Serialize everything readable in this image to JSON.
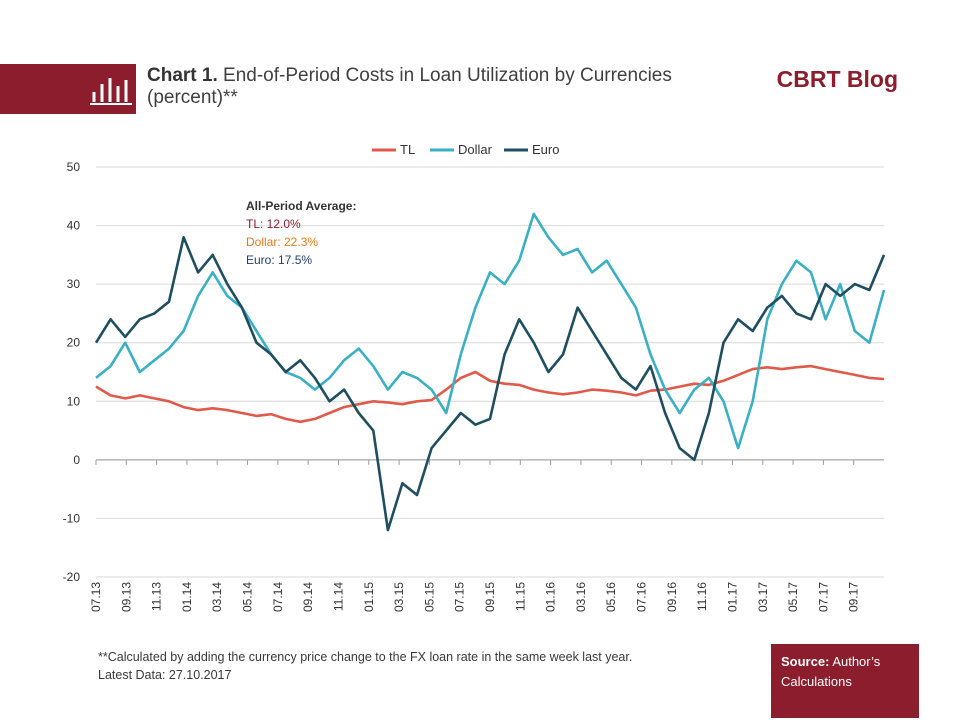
{
  "header": {
    "chart_label": "Chart 1.",
    "title": "End-of-Period Costs in Loan Utilization by Currencies (percent)**",
    "blog_name": "CBRT Blog"
  },
  "footer": {
    "note": "**Calculated by adding the currency price change to the FX loan rate in the same week last year.",
    "latest_data": "Latest Data: 27.10.2017",
    "source_label": "Source:",
    "source_text": "Author’s Calculations"
  },
  "colors": {
    "brand": "#8b1d2c",
    "tl": "#e05a4a",
    "dollar": "#3ab0c2",
    "euro": "#1f4e5f"
  },
  "chart_data": {
    "type": "line",
    "title": "End-of-Period Costs in Loan Utilization by Currencies (percent)**",
    "ylim": [
      -20,
      50
    ],
    "yticks": [
      50,
      40,
      30,
      20,
      10,
      0,
      -10,
      -20
    ],
    "xlim": [
      0,
      54
    ],
    "x_tick_labels": [
      "07.13",
      "09.13",
      "11.13",
      "01.14",
      "03.14",
      "05.14",
      "07.14",
      "09.14",
      "11.14",
      "01.15",
      "03.15",
      "05.15",
      "07.15",
      "09.15",
      "11.15",
      "01.16",
      "03.16",
      "05.16",
      "07.16",
      "09.16",
      "11.16",
      "01.17",
      "03.17",
      "05.17",
      "07.17",
      "09.17"
    ],
    "grid": "horizontal",
    "legend_placement": "top",
    "annotation": {
      "heading": "All-Period Average:",
      "lines": [
        {
          "text": "TL: 12.0%",
          "color": "#8b1d2c"
        },
        {
          "text": "Dollar: 22.3%",
          "color": "#e07b1f"
        },
        {
          "text": "Euro: 17.5%",
          "color": "#1f3f6e"
        }
      ]
    },
    "series": [
      {
        "name": "TL",
        "color": "#e05a4a",
        "x": [
          0,
          1,
          2,
          3,
          4,
          5,
          6,
          7,
          8,
          9,
          10,
          11,
          12,
          13,
          14,
          15,
          16,
          17,
          18,
          19,
          20,
          21,
          22,
          23,
          24,
          25,
          26,
          27,
          28,
          29,
          30,
          31,
          32,
          33,
          34,
          35,
          36,
          37,
          38,
          39,
          40,
          41,
          42,
          43,
          44,
          45,
          46,
          47,
          48,
          49,
          50,
          51,
          52,
          53,
          54
        ],
        "y": [
          12.5,
          11,
          10.5,
          11,
          10.5,
          10,
          9,
          8.5,
          8.8,
          8.5,
          8,
          7.5,
          7.8,
          7,
          6.5,
          7,
          8,
          9,
          9.5,
          10,
          9.8,
          9.5,
          10,
          10.2,
          12,
          14,
          15,
          13.5,
          13,
          12.8,
          12,
          11.5,
          11.2,
          11.5,
          12,
          11.8,
          11.5,
          11,
          11.8,
          12,
          12.5,
          13,
          12.8,
          13.5,
          14.5,
          15.5,
          15.8,
          15.5,
          15.8,
          16,
          15.5,
          15,
          14.5,
          14,
          13.8
        ]
      },
      {
        "name": "Dollar",
        "color": "#3ab0c2",
        "x": [
          0,
          1,
          2,
          3,
          4,
          5,
          6,
          7,
          8,
          9,
          10,
          11,
          12,
          13,
          14,
          15,
          16,
          17,
          18,
          19,
          20,
          21,
          22,
          23,
          24,
          25,
          26,
          27,
          28,
          29,
          30,
          31,
          32,
          33,
          34,
          35,
          36,
          37,
          38,
          39,
          40,
          41,
          42,
          43,
          44,
          45,
          46,
          47,
          48,
          49,
          50,
          51,
          52,
          53,
          54
        ],
        "y": [
          14,
          16,
          20,
          15,
          17,
          19,
          22,
          28,
          32,
          28,
          26,
          22,
          18,
          15,
          14,
          12,
          14,
          17,
          19,
          16,
          12,
          15,
          14,
          12,
          8,
          18,
          26,
          32,
          30,
          34,
          42,
          38,
          35,
          36,
          32,
          34,
          30,
          26,
          18,
          12,
          8,
          12,
          14,
          10,
          2,
          10,
          24,
          30,
          34,
          32,
          24,
          30,
          22,
          20,
          29
        ]
      },
      {
        "name": "Euro",
        "color": "#1f4e5f",
        "x": [
          0,
          1,
          2,
          3,
          4,
          5,
          6,
          7,
          8,
          9,
          10,
          11,
          12,
          13,
          14,
          15,
          16,
          17,
          18,
          19,
          20,
          21,
          22,
          23,
          24,
          25,
          26,
          27,
          28,
          29,
          30,
          31,
          32,
          33,
          34,
          35,
          36,
          37,
          38,
          39,
          40,
          41,
          42,
          43,
          44,
          45,
          46,
          47,
          48,
          49,
          50,
          51,
          52,
          53,
          54
        ],
        "y": [
          20,
          24,
          21,
          24,
          25,
          27,
          38,
          32,
          35,
          30,
          26,
          20,
          18,
          15,
          17,
          14,
          10,
          12,
          8,
          5,
          -12,
          -4,
          -6,
          2,
          5,
          8,
          6,
          7,
          18,
          24,
          20,
          15,
          18,
          26,
          22,
          18,
          14,
          12,
          16,
          8,
          2,
          0,
          8,
          20,
          24,
          22,
          26,
          28,
          25,
          24,
          30,
          28,
          30,
          29,
          35
        ]
      }
    ]
  }
}
